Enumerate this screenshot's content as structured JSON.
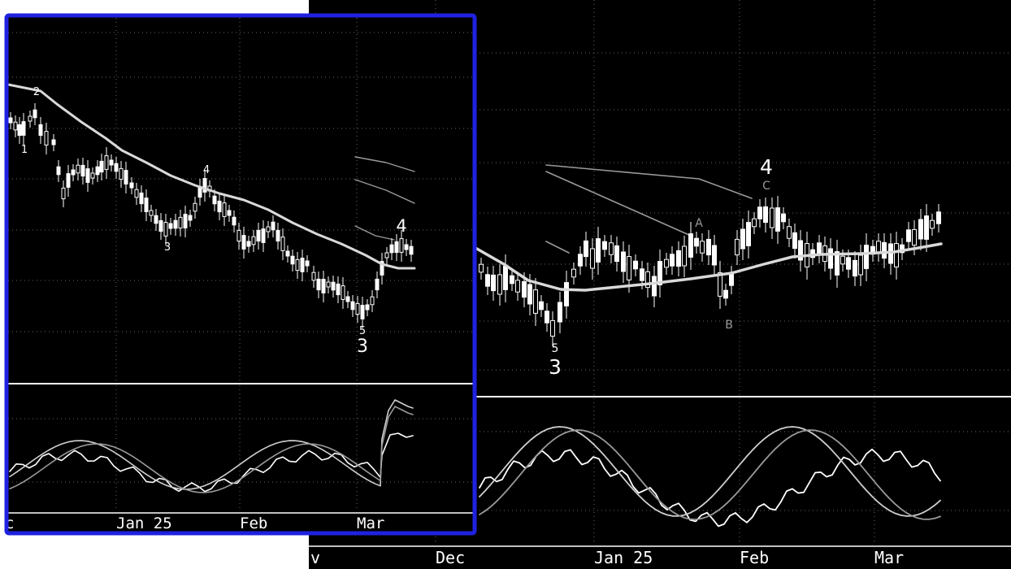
{
  "colors": {
    "background": "#000000",
    "page": "#ffffff",
    "candle": "#ffffff",
    "moving_average": "#d9d9d9",
    "channel": "#9a9a9a",
    "grid": "#666666",
    "label_bright": "#ffffff",
    "label_dim": "#9a9a9a",
    "inset_border": "#1f22e0",
    "stoch_fast": "#ffffff",
    "stoch_k": "#cfcfcf",
    "stoch_d": "#9a9a9a"
  },
  "chart_data": [
    {
      "id": "main",
      "type": "candlestick",
      "title": "",
      "x_tick_labels": [
        "v",
        "Dec",
        "Jan 25",
        "Feb",
        "Mar"
      ],
      "grid": true,
      "indicator": {
        "type": "stochastic",
        "lines": [
          "fast",
          "k",
          "d"
        ],
        "ylim": [
          0,
          100
        ],
        "levels": [
          20,
          80
        ]
      },
      "wave_labels": [
        {
          "text": "5",
          "style": "small"
        },
        {
          "text": "3",
          "style": "large"
        },
        {
          "text": "A",
          "style": "dim"
        },
        {
          "text": "B",
          "style": "dim"
        },
        {
          "text": "C",
          "style": "dim"
        },
        {
          "text": "4",
          "style": "large"
        }
      ]
    },
    {
      "id": "inset",
      "type": "candlestick",
      "title": "",
      "x_tick_labels": [
        "c",
        "Jan 25",
        "Feb",
        "Mar"
      ],
      "grid": true,
      "indicator": {
        "type": "stochastic",
        "lines": [
          "fast",
          "k",
          "d"
        ],
        "ylim": [
          0,
          100
        ],
        "levels": [
          20,
          80
        ]
      },
      "wave_labels": [
        {
          "text": "1",
          "style": "small"
        },
        {
          "text": "2",
          "style": "small"
        },
        {
          "text": "3",
          "style": "small"
        },
        {
          "text": "4",
          "style": "small"
        },
        {
          "text": "5",
          "style": "small"
        },
        {
          "text": "3",
          "style": "large"
        },
        {
          "text": "4",
          "style": "large"
        }
      ]
    }
  ]
}
